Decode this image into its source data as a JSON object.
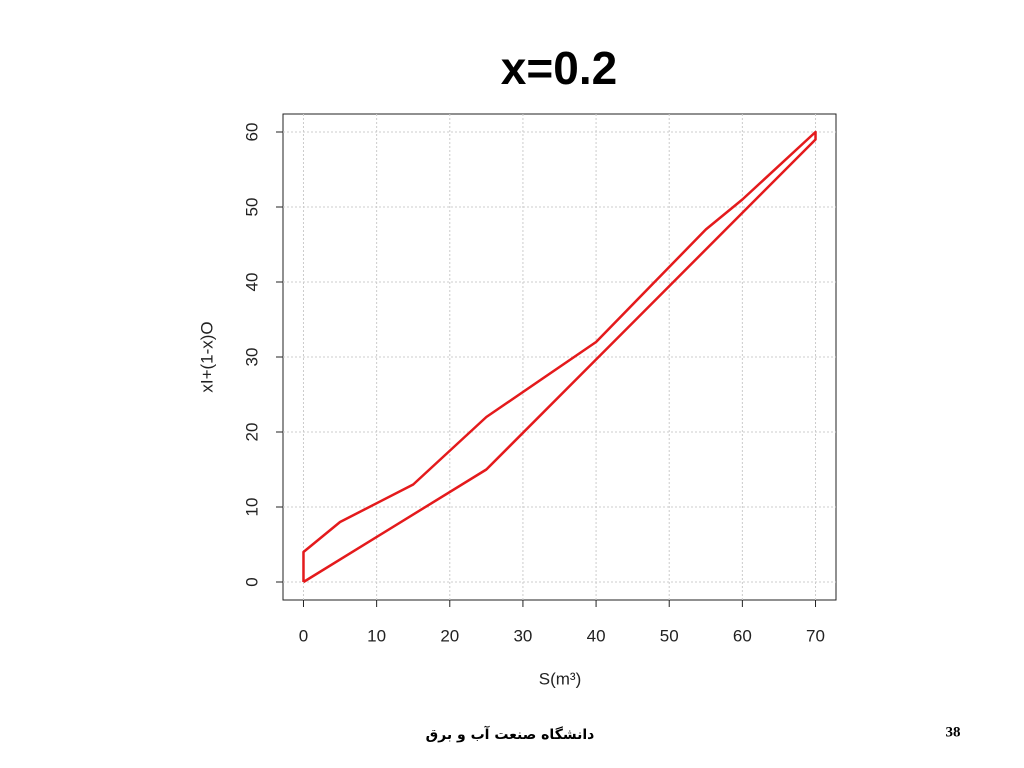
{
  "chart_data": {
    "type": "line",
    "title": "x=0.2",
    "xlabel": "S(m³)",
    "ylabel": "xI+(1-x)O",
    "x": [
      0,
      25,
      70,
      70,
      60,
      55,
      50,
      40,
      25,
      15,
      5,
      0,
      0
    ],
    "values": [
      0,
      15,
      59,
      60,
      51,
      47,
      42,
      32,
      22,
      13,
      8,
      4,
      0
    ],
    "color": "#e41a1c",
    "xlim": [
      -2.8,
      72.8
    ],
    "xticks": [
      0,
      10,
      20,
      30,
      40,
      50,
      60,
      70
    ],
    "ylim": [
      -2.4,
      62.4
    ],
    "yticks": [
      0,
      10,
      20,
      30,
      40,
      50,
      60
    ],
    "grid": true
  },
  "footer": {
    "text": "دانشگاه صنعت آب و برق",
    "page": "38"
  }
}
